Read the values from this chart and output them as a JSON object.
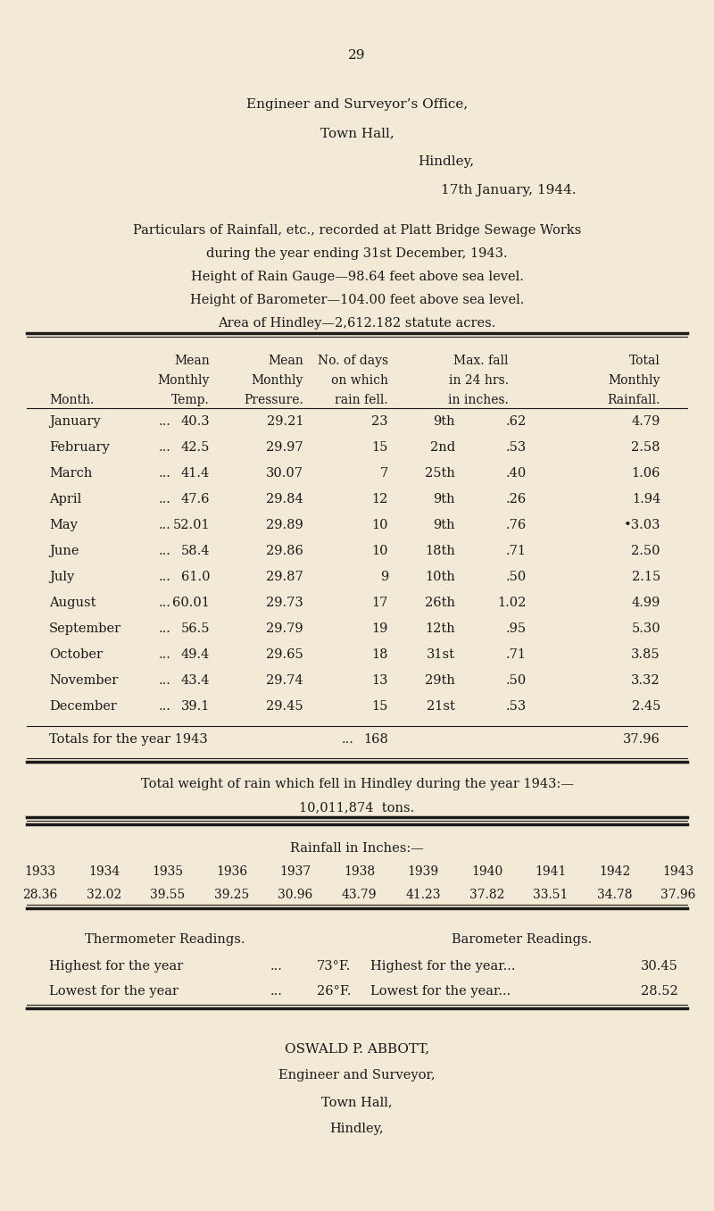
{
  "bg_color": "#f2ead6",
  "text_color": "#1a1a1a",
  "page_number": "29",
  "header_lines": [
    "Engineer and Surveyor’s Office,",
    "Town Hall,",
    "Hindley,",
    "17th January, 1944."
  ],
  "intro_lines": [
    "Particulars of Rainfall, etc., recorded at Platt Bridge Sewage Works",
    "during the year ending 31st December, 1943.",
    "Height of Rain Gauge—98.64 feet above sea level.",
    "Height of Barometer—104.00 feet above sea level.",
    "Area of Hindley—2,612.182 statute acres."
  ],
  "table_col_headers_row1": [
    "",
    "Mean",
    "Mean",
    "No. of days",
    "Max. fall",
    "Total"
  ],
  "table_col_headers_row2": [
    "",
    "Monthly",
    "Monthly",
    "on which",
    "in 24 hrs.",
    "Monthly"
  ],
  "table_col_headers_row3": [
    "Month.",
    "Temp.",
    "Pressure.",
    "rain fell.",
    "in inches.",
    "Rainfall."
  ],
  "table_rows": [
    [
      "January",
      "...",
      "40.3",
      "29.21",
      "23",
      "9th",
      ".62",
      "4.79"
    ],
    [
      "February",
      "...",
      "42.5",
      "29.97",
      "15",
      "2nd",
      ".53",
      "2.58"
    ],
    [
      "March",
      "...",
      "41.4",
      "30.07",
      "7",
      "25th",
      ".40",
      "1.06"
    ],
    [
      "April",
      "...",
      "47.6",
      "29.84",
      "12",
      "9th",
      ".26",
      "1.94"
    ],
    [
      "May",
      "...",
      "52.01",
      "29.89",
      "10",
      "9th",
      ".76",
      "•3.03"
    ],
    [
      "June",
      "...",
      "58.4",
      "29.86",
      "10",
      "18th",
      ".71",
      "2.50"
    ],
    [
      "July",
      "...",
      "61.0",
      "29.87",
      "9",
      "10th",
      ".50",
      "2.15"
    ],
    [
      "August",
      "...",
      "60.01",
      "29.73",
      "17",
      "26th",
      "1.02",
      "4.99"
    ],
    [
      "September",
      "...",
      "56.5",
      "29.79",
      "19",
      "12th",
      ".95",
      "5.30"
    ],
    [
      "October",
      "...",
      "49.4",
      "29.65",
      "18",
      "31st",
      ".71",
      "3.85"
    ],
    [
      "November",
      "...",
      "43.4",
      "29.74",
      "13",
      "29th",
      ".50",
      "3.32"
    ],
    [
      "December",
      "...",
      "39.1",
      "29.45",
      "15",
      "21st",
      ".53",
      "2.45"
    ]
  ],
  "totals_row": [
    "Totals for the year 1943",
    "...",
    "168",
    "37.96"
  ],
  "weight_line1": "Total weight of rain which fell in Hindley during the year 1943:—",
  "weight_line2": "10,011,874  tons.",
  "rainfall_title": "Rainfall in Inches:—",
  "rainfall_years": [
    "1933",
    "1934",
    "1935",
    "1936",
    "1937",
    "1938",
    "1939",
    "1940",
    "1941",
    "1942",
    "1943"
  ],
  "rainfall_values": [
    "28.36",
    "32.02",
    "39.55",
    "39.25",
    "30.96",
    "43.79",
    "41.23",
    "37.82",
    "33.51",
    "34.78",
    "37.96"
  ],
  "thermo_title": "Thermometer Readings.",
  "baro_title": "Barometer Readings.",
  "thermo_high_label": "Highest for the year",
  "thermo_high_dots": "...",
  "thermo_high_val": "73°F.",
  "thermo_low_label": "Lowest for the year",
  "thermo_low_dots": "...",
  "thermo_low_val": "26°F.",
  "baro_high_label": "Highest for the year...",
  "baro_high_val": "30.45",
  "baro_low_label": "Lowest for the year...",
  "baro_low_val": "28.52",
  "footer_lines": [
    "OSWALD P. ABBOTT,",
    "Engineer and Surveyor,",
    "Town Hall,",
    "Hindley,"
  ]
}
